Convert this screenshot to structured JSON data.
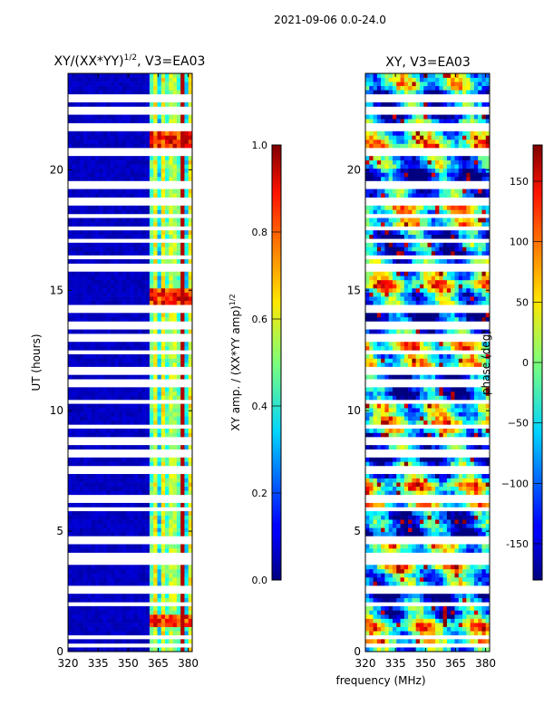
{
  "suptitle": "2021-09-06 0.0-24.0",
  "chart_data": [
    {
      "type": "heatmap",
      "title": "XY/(XX*YY)^1/2, V3=EA03",
      "title_base": "XY/(XX*YY)",
      "title_exp": "1/2",
      "title_rest": ", V3=EA03",
      "xlabel": "",
      "ylabel": "UT (hours)",
      "xlim": [
        320,
        382
      ],
      "ylim": [
        0,
        24
      ],
      "xticks": [
        "320",
        "335",
        "350",
        "365",
        "380"
      ],
      "yticks": [
        "0",
        "5",
        "10",
        "15",
        "20"
      ],
      "colormap": "jet",
      "colorbar": {
        "label_base": "XY amp. / (XX*YY amp)",
        "label_exp": "1/2",
        "range": [
          0.0,
          1.0
        ],
        "ticks": [
          "0.0",
          "0.2",
          "0.4",
          "0.6",
          "0.8",
          "1.0"
        ]
      }
    },
    {
      "type": "heatmap",
      "title": "XY, V3=EA03",
      "xlabel": "frequency (MHz)",
      "ylabel": "",
      "xlim": [
        320,
        382
      ],
      "ylim": [
        0,
        24
      ],
      "xticks": [
        "320",
        "335",
        "350",
        "365",
        "380"
      ],
      "yticks": [
        "0",
        "5",
        "10",
        "15",
        "20"
      ],
      "colormap": "jet",
      "colorbar": {
        "label": "phase (deg)",
        "range": [
          -180,
          180
        ],
        "ticks": [
          "-150",
          "−100",
          "−50",
          "0",
          "50",
          "100",
          "150"
        ]
      }
    }
  ]
}
